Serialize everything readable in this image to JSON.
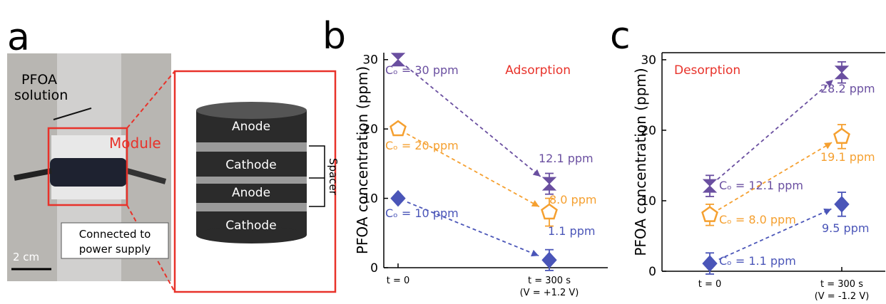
{
  "photo_panel": {
    "panel_label": "a",
    "solution_label": [
      "PFOA",
      "solution"
    ],
    "module_label": "Module",
    "power_label": [
      "Connected to",
      "power supply"
    ],
    "scale_bar": "2 cm",
    "stack_layers": [
      "Anode",
      "Cathode",
      "Anode",
      "Cathode"
    ],
    "spacer_label": "Spacer"
  },
  "chart_data": [
    {
      "type": "scatter",
      "panel_label": "b",
      "annotation": "Adsorption",
      "y_label": "PFOA concentration (ppm)",
      "categories": [
        "t = 0",
        "t = 300 s\n(V = +1.2 V)"
      ],
      "ylim": [
        0,
        31
      ],
      "yticks": [
        0,
        10,
        20,
        30
      ],
      "series": [
        {
          "color": "#6a4fa0",
          "marker": "hourglass",
          "filled": true,
          "values": [
            30,
            12.1
          ],
          "errors": [
            null,
            1.5
          ],
          "value_labels": [
            "Cₒ = 30 ppm",
            "12.1 ppm"
          ]
        },
        {
          "color": "#f5a030",
          "marker": "pentagon",
          "filled": false,
          "values": [
            20,
            8.0
          ],
          "errors": [
            null,
            2
          ],
          "value_labels": [
            "Cₒ = 20 ppm",
            "8.0 ppm"
          ]
        },
        {
          "color": "#4a55b8",
          "marker": "diamond",
          "filled": true,
          "values": [
            10,
            1.1
          ],
          "errors": [
            null,
            1.5
          ],
          "value_labels": [
            "Cₒ = 10 ppm",
            "1.1 ppm"
          ]
        }
      ]
    },
    {
      "type": "scatter",
      "panel_label": "c",
      "annotation": "Desorption",
      "y_label": "PFOA concentration (ppm)",
      "categories": [
        "t = 0",
        "t = 300 s\n(V = -1.2 V)"
      ],
      "ylim": [
        0,
        31
      ],
      "yticks": [
        0,
        10,
        20,
        30
      ],
      "series": [
        {
          "color": "#6a4fa0",
          "marker": "hourglass",
          "filled": true,
          "values": [
            12.1,
            28.2
          ],
          "errors": [
            1.5,
            1.5
          ],
          "value_labels": [
            "Cₒ = 12.1 ppm",
            "28.2 ppm"
          ]
        },
        {
          "color": "#f5a030",
          "marker": "pentagon",
          "filled": false,
          "values": [
            8.0,
            19.1
          ],
          "errors": [
            1.5,
            1.7
          ],
          "value_labels": [
            "Cₒ = 8.0 ppm",
            "19.1 ppm"
          ]
        },
        {
          "color": "#4a55b8",
          "marker": "diamond",
          "filled": true,
          "values": [
            1.1,
            9.5
          ],
          "errors": [
            1.5,
            1.7
          ],
          "value_labels": [
            "Cₒ = 1.1 ppm",
            "9.5 ppm"
          ]
        }
      ]
    }
  ]
}
